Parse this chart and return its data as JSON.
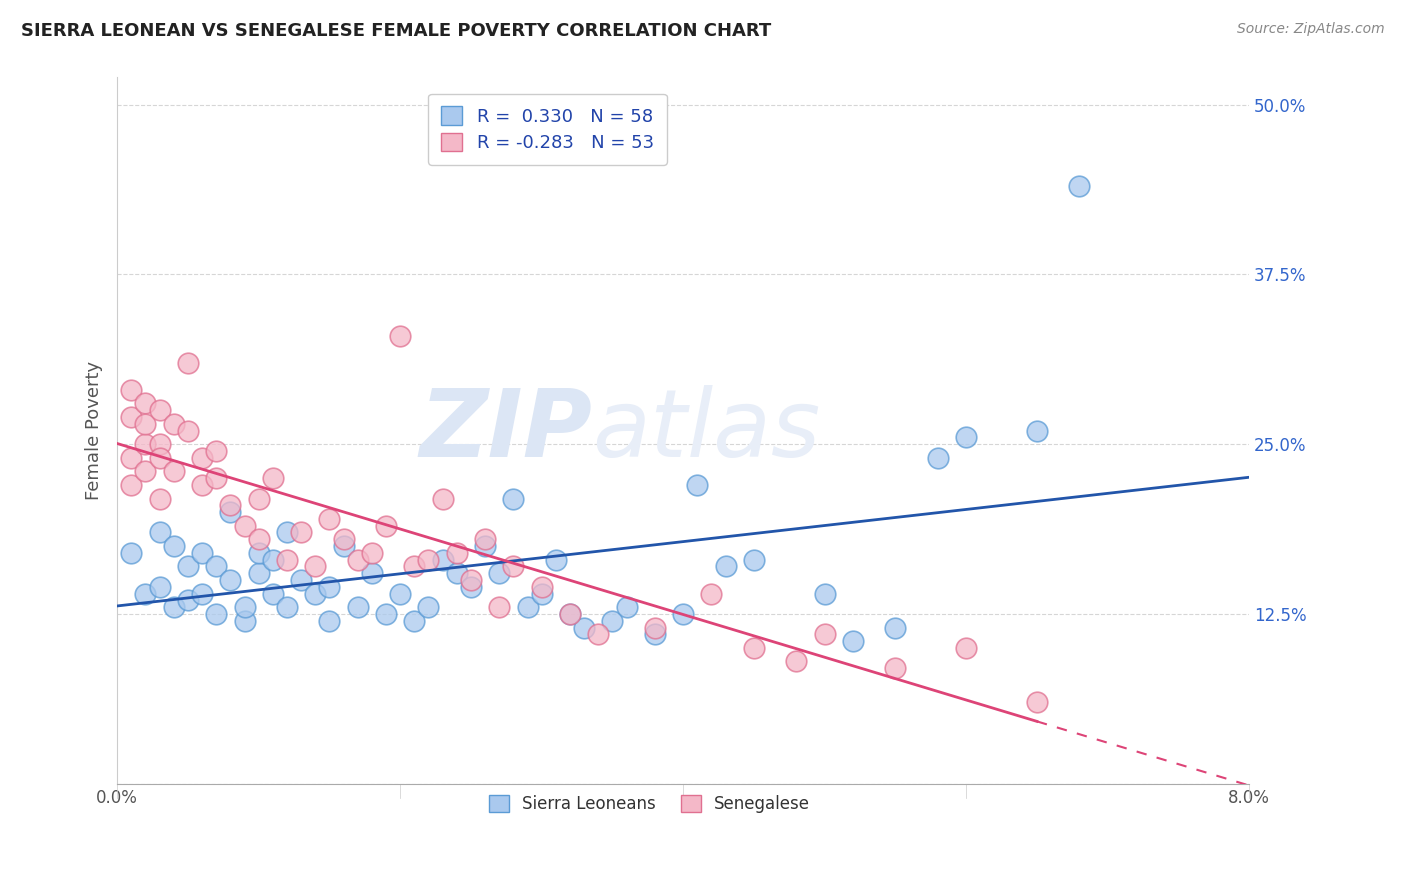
{
  "title": "SIERRA LEONEAN VS SENEGALESE FEMALE POVERTY CORRELATION CHART",
  "source": "Source: ZipAtlas.com",
  "ylabel": "Female Poverty",
  "legend_labels": [
    "Sierra Leoneans",
    "Senegalese"
  ],
  "blue_r": "0.330",
  "blue_n": "58",
  "pink_r": "-0.283",
  "pink_n": "53",
  "blue_color": "#aac9ee",
  "pink_color": "#f4b8c8",
  "blue_edge_color": "#5b9bd5",
  "pink_edge_color": "#e07090",
  "blue_line_color": "#2255aa",
  "pink_line_color": "#dd4477",
  "blue_scatter": [
    [
      0.1,
      17.0
    ],
    [
      0.2,
      14.0
    ],
    [
      0.3,
      18.5
    ],
    [
      0.3,
      14.5
    ],
    [
      0.4,
      13.0
    ],
    [
      0.4,
      17.5
    ],
    [
      0.5,
      13.5
    ],
    [
      0.5,
      16.0
    ],
    [
      0.6,
      17.0
    ],
    [
      0.6,
      14.0
    ],
    [
      0.7,
      12.5
    ],
    [
      0.7,
      16.0
    ],
    [
      0.8,
      15.0
    ],
    [
      0.8,
      20.0
    ],
    [
      0.9,
      12.0
    ],
    [
      0.9,
      13.0
    ],
    [
      1.0,
      15.5
    ],
    [
      1.0,
      17.0
    ],
    [
      1.1,
      14.0
    ],
    [
      1.1,
      16.5
    ],
    [
      1.2,
      18.5
    ],
    [
      1.2,
      13.0
    ],
    [
      1.3,
      15.0
    ],
    [
      1.4,
      14.0
    ],
    [
      1.5,
      14.5
    ],
    [
      1.5,
      12.0
    ],
    [
      1.6,
      17.5
    ],
    [
      1.7,
      13.0
    ],
    [
      1.8,
      15.5
    ],
    [
      1.9,
      12.5
    ],
    [
      2.0,
      14.0
    ],
    [
      2.1,
      12.0
    ],
    [
      2.2,
      13.0
    ],
    [
      2.3,
      16.5
    ],
    [
      2.4,
      15.5
    ],
    [
      2.5,
      14.5
    ],
    [
      2.6,
      17.5
    ],
    [
      2.7,
      15.5
    ],
    [
      2.8,
      21.0
    ],
    [
      2.9,
      13.0
    ],
    [
      3.0,
      14.0
    ],
    [
      3.1,
      16.5
    ],
    [
      3.2,
      12.5
    ],
    [
      3.3,
      11.5
    ],
    [
      3.5,
      12.0
    ],
    [
      3.6,
      13.0
    ],
    [
      3.8,
      11.0
    ],
    [
      4.0,
      12.5
    ],
    [
      4.1,
      22.0
    ],
    [
      4.3,
      16.0
    ],
    [
      4.5,
      16.5
    ],
    [
      5.0,
      14.0
    ],
    [
      5.2,
      10.5
    ],
    [
      5.5,
      11.5
    ],
    [
      5.8,
      24.0
    ],
    [
      6.0,
      25.5
    ],
    [
      6.5,
      26.0
    ],
    [
      6.8,
      44.0
    ]
  ],
  "pink_scatter": [
    [
      0.1,
      24.0
    ],
    [
      0.1,
      27.0
    ],
    [
      0.1,
      29.0
    ],
    [
      0.1,
      22.0
    ],
    [
      0.2,
      28.0
    ],
    [
      0.2,
      25.0
    ],
    [
      0.2,
      26.5
    ],
    [
      0.2,
      23.0
    ],
    [
      0.3,
      25.0
    ],
    [
      0.3,
      27.5
    ],
    [
      0.3,
      24.0
    ],
    [
      0.3,
      21.0
    ],
    [
      0.4,
      26.5
    ],
    [
      0.4,
      23.0
    ],
    [
      0.5,
      31.0
    ],
    [
      0.5,
      26.0
    ],
    [
      0.6,
      24.0
    ],
    [
      0.6,
      22.0
    ],
    [
      0.7,
      22.5
    ],
    [
      0.7,
      24.5
    ],
    [
      0.8,
      20.5
    ],
    [
      0.9,
      19.0
    ],
    [
      1.0,
      21.0
    ],
    [
      1.0,
      18.0
    ],
    [
      1.1,
      22.5
    ],
    [
      1.2,
      16.5
    ],
    [
      1.3,
      18.5
    ],
    [
      1.4,
      16.0
    ],
    [
      1.5,
      19.5
    ],
    [
      1.6,
      18.0
    ],
    [
      1.7,
      16.5
    ],
    [
      1.8,
      17.0
    ],
    [
      1.9,
      19.0
    ],
    [
      2.0,
      33.0
    ],
    [
      2.1,
      16.0
    ],
    [
      2.2,
      16.5
    ],
    [
      2.3,
      21.0
    ],
    [
      2.4,
      17.0
    ],
    [
      2.5,
      15.0
    ],
    [
      2.6,
      18.0
    ],
    [
      2.7,
      13.0
    ],
    [
      2.8,
      16.0
    ],
    [
      3.0,
      14.5
    ],
    [
      3.2,
      12.5
    ],
    [
      3.4,
      11.0
    ],
    [
      3.8,
      11.5
    ],
    [
      4.2,
      14.0
    ],
    [
      4.5,
      10.0
    ],
    [
      4.8,
      9.0
    ],
    [
      5.0,
      11.0
    ],
    [
      5.5,
      8.5
    ],
    [
      6.0,
      10.0
    ],
    [
      6.5,
      6.0
    ]
  ],
  "xlim": [
    0.0,
    8.0
  ],
  "ylim": [
    0.0,
    52.0
  ],
  "ytick_vals": [
    0.0,
    12.5,
    25.0,
    37.5,
    50.0
  ],
  "ytick_labels": [
    "",
    "12.5%",
    "25.0%",
    "37.5%",
    "50.0%"
  ],
  "xtick_vals": [
    0.0,
    8.0
  ],
  "xtick_labels": [
    "0.0%",
    "8.0%"
  ],
  "background_color": "#ffffff",
  "grid_color": "#cccccc",
  "watermark_zip": "ZIP",
  "watermark_atlas": "atlas",
  "watermark_color": "#dce6f5"
}
